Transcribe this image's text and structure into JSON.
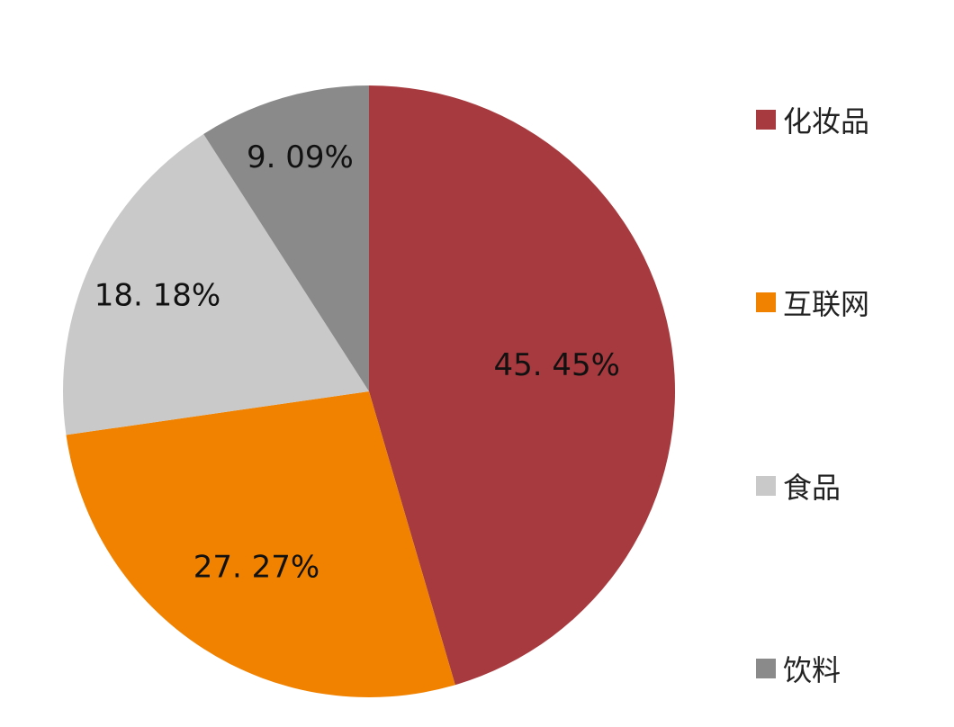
{
  "chart_data": {
    "type": "pie",
    "title": "",
    "categories": [
      "化妆品",
      "互联网",
      "食品",
      "饮料"
    ],
    "values": [
      45.45,
      27.27,
      18.18,
      9.09
    ],
    "slice_labels": [
      "45. 45%",
      "27. 27%",
      "18. 18%",
      "9. 09%"
    ],
    "colors": [
      "#a73a3e",
      "#f08200",
      "#c9c9c9",
      "#8a8a8a"
    ],
    "start_angle_deg": 0,
    "direction": "clockwise",
    "legend_position": "right",
    "label_color": "#111111",
    "background": "#ffffff"
  }
}
